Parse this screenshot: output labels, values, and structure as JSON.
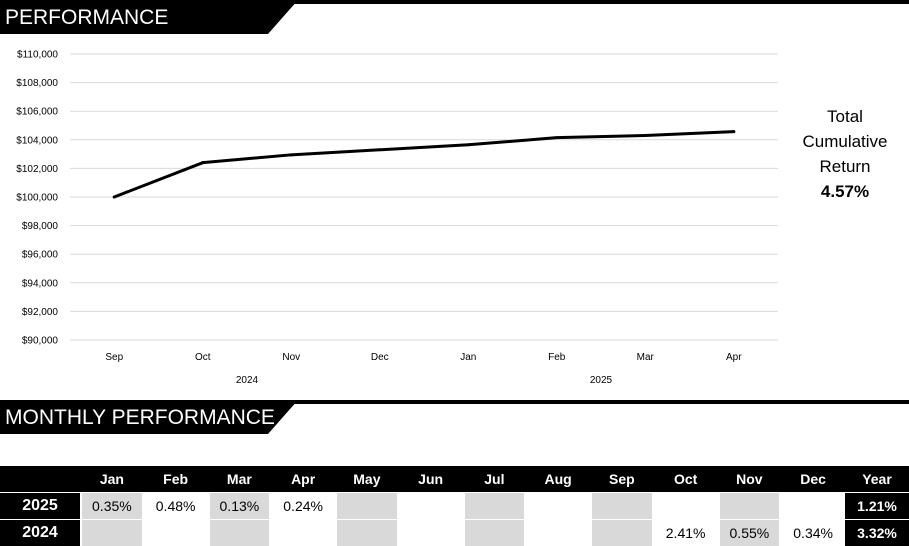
{
  "performance": {
    "title": "PERFORMANCE"
  },
  "cumulative": {
    "label_line1": "Total",
    "label_line2": "Cumulative",
    "label_line3": "Return",
    "value": "4.57%"
  },
  "chart_data": {
    "type": "line",
    "x": [
      "Sep",
      "Oct",
      "Nov",
      "Dec",
      "Jan",
      "Feb",
      "Mar",
      "Apr"
    ],
    "year_labels": [
      {
        "label": "2024",
        "after_index": 1.5
      },
      {
        "label": "2025",
        "after_index": 5.5
      }
    ],
    "series": [
      {
        "values": [
          100000,
          102400,
          102950,
          103300,
          103650,
          104150,
          104300,
          104570
        ],
        "color": "#000000"
      }
    ],
    "ylim": [
      90000,
      110000
    ],
    "yticks": [
      "$90,000",
      "$92,000",
      "$94,000",
      "$96,000",
      "$98,000",
      "$100,000",
      "$102,000",
      "$104,000",
      "$106,000",
      "$108,000",
      "$110,000"
    ],
    "ytick_values": [
      90000,
      92000,
      94000,
      96000,
      98000,
      100000,
      102000,
      104000,
      106000,
      108000,
      110000
    ],
    "grid": true,
    "gridline_color": "#d9d9d9"
  },
  "monthly": {
    "title": "MONTHLY PERFORMANCE",
    "columns": [
      "",
      "Jan",
      "Feb",
      "Mar",
      "Apr",
      "May",
      "Jun",
      "Jul",
      "Aug",
      "Sep",
      "Oct",
      "Nov",
      "Dec",
      "Year"
    ],
    "rows": [
      {
        "year": "2025",
        "cells": [
          "0.35%",
          "0.48%",
          "0.13%",
          "0.24%",
          "",
          "",
          "",
          "",
          "",
          "",
          "",
          ""
        ],
        "total": "1.21%"
      },
      {
        "year": "2024",
        "cells": [
          "",
          "",
          "",
          "",
          "",
          "",
          "",
          "",
          "",
          "2.41%",
          "0.55%",
          "0.34%"
        ],
        "total": "3.32%"
      }
    ]
  }
}
